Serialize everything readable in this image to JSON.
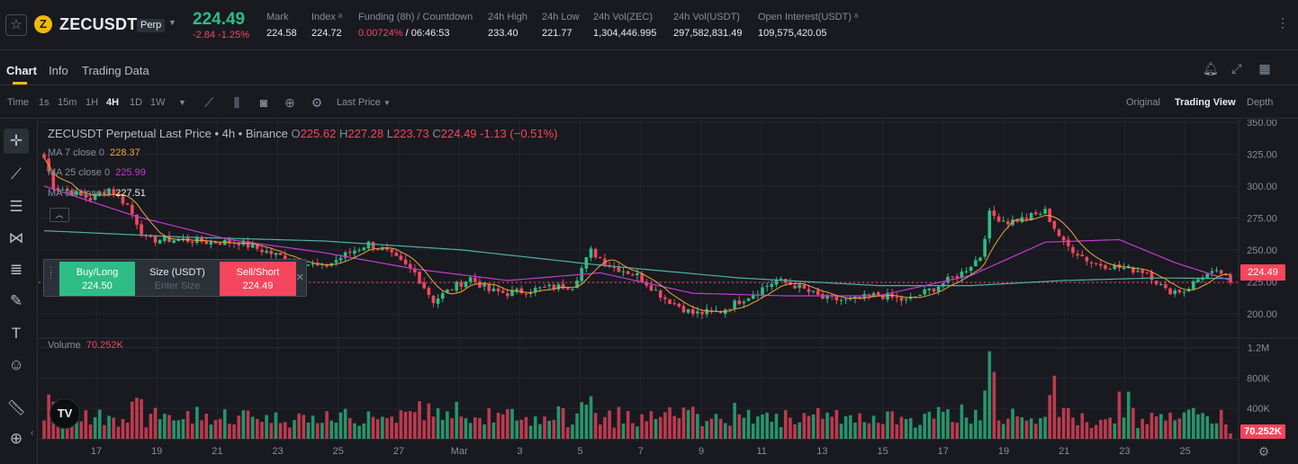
{
  "ticker": {
    "star_icon": "star-icon",
    "coin_letter": "Z",
    "symbol": "ZECUSDT",
    "contract_type": "Perp",
    "last_price": "224.49",
    "change": "-2.84 -1.25%",
    "stats": [
      {
        "label": "Mark",
        "value": "224.58"
      },
      {
        "label": "Index ᵃ",
        "value": "224.72"
      },
      {
        "label": "Funding (8h) / Countdown",
        "value_funding": "0.00724%",
        "value_countdown": " / 06:46:53"
      },
      {
        "label": "24h High",
        "value": "233.40"
      },
      {
        "label": "24h Low",
        "value": "221.77"
      },
      {
        "label": "24h Vol(ZEC)",
        "value": "1,304,446.995"
      },
      {
        "label": "24h Vol(USDT)",
        "value": "297,582,831.49"
      },
      {
        "label": "Open Interest(USDT) ᵃ",
        "value": "109,575,420.05"
      }
    ]
  },
  "tabs": [
    "Chart",
    "Info",
    "Trading Data"
  ],
  "toolbar": {
    "time_label": "Time",
    "intervals": [
      "1s",
      "15m",
      "1H",
      "4H",
      "1D",
      "1W"
    ],
    "active_interval": "4H",
    "price_type": "Last Price",
    "views": [
      "Original",
      "Trading View",
      "Depth"
    ],
    "active_view": "Trading View"
  },
  "legend": {
    "title": "ZECUSDT Perpetual Last Price • 4h • Binance",
    "o_label": "O",
    "o": "225.62",
    "h_label": "H",
    "h": "227.28",
    "l_label": "L",
    "l": "223.73",
    "c_label": "C",
    "c": "224.49",
    "chg": "-1.13 (−0.51%)",
    "ma": [
      {
        "label": "MA 7 close 0",
        "value": "228.37",
        "color": "#f0a33b"
      },
      {
        "label": "MA 25 close 0",
        "value": "225.99",
        "color": "#c53bd0"
      },
      {
        "label": "MA 99 close 0",
        "value": "227.51",
        "color": "#4fb0a8"
      }
    ],
    "volume_label": "Volume",
    "volume_value": "70.252K"
  },
  "trade": {
    "buy_label": "Buy/Long",
    "buy_price": "224.50",
    "size_label": "Size (USDT)",
    "size_placeholder": "Enter Size",
    "sell_label": "Sell/Short",
    "sell_price": "224.49"
  },
  "tv_logo": "TV",
  "current_price_tag": "224.49",
  "volume_tag": "70.252K",
  "colors": {
    "up": "#2ebd85",
    "down": "#f6465d",
    "ma7": "#f0a33b",
    "ma25": "#c53bd0",
    "ma99": "#4fb0a8"
  },
  "chart_data": {
    "type": "candlestick",
    "timeframe": "4h",
    "price_ticks": [
      350,
      325,
      300,
      275,
      250,
      225,
      200
    ],
    "price_tick_labels": [
      "350.00",
      "325.00",
      "300.00",
      "275.00",
      "250.00",
      "225.00",
      "200.00"
    ],
    "volume_ticks": [
      "1.2M",
      "800K",
      "400K"
    ],
    "volume_tick_values": [
      1200000,
      800000,
      400000
    ],
    "x_labels": [
      "17",
      "19",
      "21",
      "23",
      "25",
      "27",
      "Mar",
      "3",
      "5",
      "7",
      "9",
      "11",
      "13",
      "15",
      "17",
      "19",
      "21",
      "23",
      "25"
    ],
    "close_path": [
      {
        "t": 0,
        "p": 322
      },
      {
        "t": 2,
        "p": 300
      },
      {
        "t": 6,
        "p": 295
      },
      {
        "t": 10,
        "p": 290
      },
      {
        "t": 14,
        "p": 298
      },
      {
        "t": 18,
        "p": 285
      },
      {
        "t": 22,
        "p": 258
      },
      {
        "t": 30,
        "p": 258
      },
      {
        "t": 36,
        "p": 256
      },
      {
        "t": 42,
        "p": 256
      },
      {
        "t": 50,
        "p": 246
      },
      {
        "t": 56,
        "p": 240
      },
      {
        "t": 60,
        "p": 236
      },
      {
        "t": 66,
        "p": 248
      },
      {
        "t": 70,
        "p": 255
      },
      {
        "t": 74,
        "p": 248
      },
      {
        "t": 80,
        "p": 232
      },
      {
        "t": 84,
        "p": 210
      },
      {
        "t": 88,
        "p": 220
      },
      {
        "t": 92,
        "p": 228
      },
      {
        "t": 96,
        "p": 218
      },
      {
        "t": 100,
        "p": 216
      },
      {
        "t": 108,
        "p": 220
      },
      {
        "t": 114,
        "p": 222
      },
      {
        "t": 118,
        "p": 249
      },
      {
        "t": 122,
        "p": 238
      },
      {
        "t": 128,
        "p": 230
      },
      {
        "t": 134,
        "p": 212
      },
      {
        "t": 140,
        "p": 200
      },
      {
        "t": 146,
        "p": 202
      },
      {
        "t": 152,
        "p": 214
      },
      {
        "t": 158,
        "p": 226
      },
      {
        "t": 162,
        "p": 222
      },
      {
        "t": 168,
        "p": 212
      },
      {
        "t": 174,
        "p": 210
      },
      {
        "t": 180,
        "p": 215
      },
      {
        "t": 186,
        "p": 210
      },
      {
        "t": 192,
        "p": 220
      },
      {
        "t": 198,
        "p": 232
      },
      {
        "t": 202,
        "p": 245
      },
      {
        "t": 204,
        "p": 278
      },
      {
        "t": 208,
        "p": 272
      },
      {
        "t": 212,
        "p": 275
      },
      {
        "t": 216,
        "p": 280
      },
      {
        "t": 220,
        "p": 255
      },
      {
        "t": 226,
        "p": 240
      },
      {
        "t": 232,
        "p": 236
      },
      {
        "t": 238,
        "p": 233
      },
      {
        "t": 242,
        "p": 218
      },
      {
        "t": 246,
        "p": 218
      },
      {
        "t": 250,
        "p": 230
      },
      {
        "t": 254,
        "p": 232
      },
      {
        "t": 256,
        "p": 224.49
      }
    ],
    "ma25_path": [
      {
        "t": 0,
        "p": 300
      },
      {
        "t": 20,
        "p": 276
      },
      {
        "t": 40,
        "p": 258
      },
      {
        "t": 60,
        "p": 248
      },
      {
        "t": 80,
        "p": 235
      },
      {
        "t": 100,
        "p": 226
      },
      {
        "t": 120,
        "p": 232
      },
      {
        "t": 140,
        "p": 216
      },
      {
        "t": 160,
        "p": 214
      },
      {
        "t": 180,
        "p": 214
      },
      {
        "t": 200,
        "p": 230
      },
      {
        "t": 216,
        "p": 256
      },
      {
        "t": 232,
        "p": 258
      },
      {
        "t": 244,
        "p": 240
      },
      {
        "t": 256,
        "p": 225.99
      }
    ],
    "ma99_path": [
      {
        "t": 0,
        "p": 265
      },
      {
        "t": 30,
        "p": 260
      },
      {
        "t": 60,
        "p": 257
      },
      {
        "t": 90,
        "p": 250
      },
      {
        "t": 120,
        "p": 238
      },
      {
        "t": 150,
        "p": 228
      },
      {
        "t": 180,
        "p": 222
      },
      {
        "t": 200,
        "p": 222
      },
      {
        "t": 220,
        "p": 226
      },
      {
        "t": 240,
        "p": 228
      },
      {
        "t": 256,
        "p": 227.51
      }
    ]
  }
}
